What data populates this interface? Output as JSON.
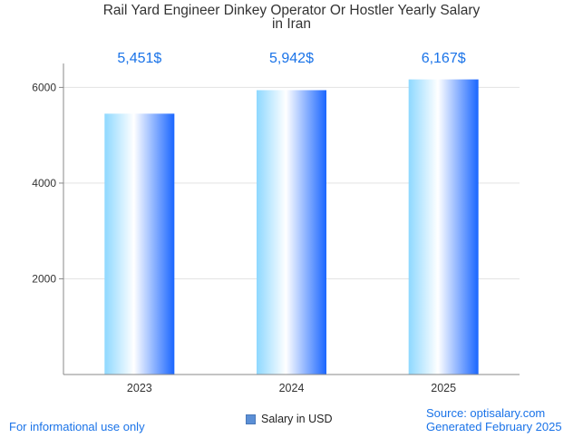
{
  "chart_data": {
    "type": "bar",
    "title": "Rail Yard Engineer Dinkey Operator Or Hostler Yearly Salary",
    "subtitle": "in Iran",
    "categories": [
      "2023",
      "2024",
      "2025"
    ],
    "values": [
      5451,
      5942,
      6167
    ],
    "value_labels": [
      "5,451$",
      "5,942$",
      "6,167$"
    ],
    "series": [
      {
        "name": "Salary in USD",
        "values": [
          5451,
          5942,
          6167
        ]
      }
    ],
    "yticks": [
      2000,
      4000,
      6000
    ],
    "ylim": [
      0,
      6500
    ],
    "xlabel": "",
    "ylabel": "",
    "grid": true,
    "legend": "bottom-center"
  },
  "footer": {
    "disclaimer": "For informational use only",
    "source": "Source: optisalary.com",
    "generated": "Generated February 2025"
  },
  "colors": {
    "label": "#1a73e8",
    "bar_light": "#8ed8ff",
    "bar_mid": "#ffffff",
    "bar_dark": "#1a66ff"
  }
}
